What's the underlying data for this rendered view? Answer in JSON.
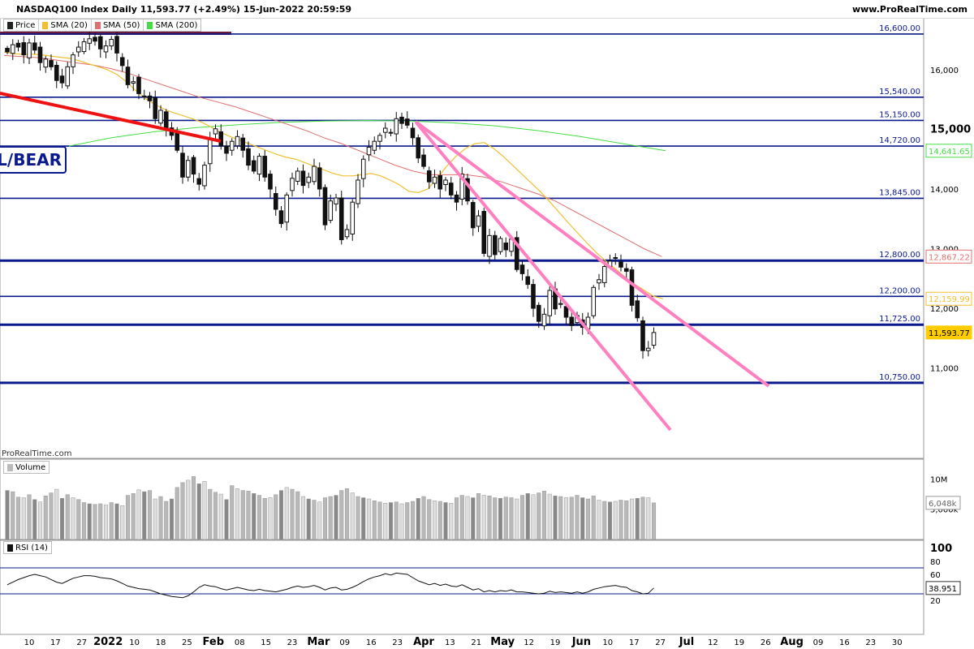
{
  "header": {
    "title": "NASDAQ100 Index Daily 11,593.77 (+2.49%) 15-Jun-2022 20:59:59",
    "site": "www.ProRealTime.com"
  },
  "legend_price": [
    "Price",
    "SMA (20)",
    "SMA (50)",
    "SMA (200)"
  ],
  "legend_volume": "Volume",
  "legend_rsi": "RSI (14)",
  "watermark": "ProRealTime.com",
  "annotation": "L/BEAR",
  "colors": {
    "sma20": "#f0c030",
    "sma50": "#e07070",
    "sma200": "#44dd44",
    "hline": "#0a1a8c",
    "trend_red": "#ee1111",
    "trend_pink": "#ff80c0",
    "price_tag": "#ffcc00",
    "volume_bar": "#bbbbbb"
  },
  "chart_data": [
    {
      "type": "candlestick",
      "name": "price",
      "ylim": [
        10650,
        16850
      ],
      "y_ticks": [
        "16,000",
        "15,000",
        "14,000",
        "13,000",
        "12,000",
        "11,000"
      ],
      "x_ticks": [
        "10",
        "17",
        "27",
        "2022",
        "10",
        "18",
        "25",
        "Feb",
        "08",
        "15",
        "23",
        "Mar",
        "09",
        "16",
        "23",
        "Apr",
        "13",
        "21",
        "May",
        "12",
        "19",
        "Jun",
        "10",
        "17",
        "27",
        "Jul",
        "12",
        "19",
        "26",
        "Aug",
        "09",
        "16",
        "23",
        "30"
      ],
      "levels": [
        16600,
        15540,
        15150,
        14720,
        13845,
        12800,
        12200,
        11725,
        10750
      ],
      "level_labels": [
        "16,600.00",
        "15,540.00",
        "15,150.00",
        "14,720.00",
        "13,845.00",
        "12,800.00",
        "12,200.00",
        "11,725.00",
        "10,750.00"
      ],
      "value_tags": [
        {
          "label": "14,641.65",
          "value": 14641.65,
          "color": "#44dd44"
        },
        {
          "label": "12,867.22",
          "value": 12867.22,
          "color": "#e07070"
        },
        {
          "label": "12,159.99",
          "value": 12159.99,
          "color": "#f0c030"
        },
        {
          "label": "11,593.77",
          "value": 11593.77,
          "color": "#ffcc00"
        }
      ],
      "closes": [
        16300,
        16420,
        16380,
        16250,
        16450,
        16330,
        16120,
        16180,
        16050,
        15820,
        15780,
        16050,
        16250,
        16380,
        16470,
        16520,
        16480,
        16350,
        16400,
        16510,
        16280,
        16070,
        15750,
        15800,
        15600,
        15560,
        15480,
        15180,
        15320,
        15000,
        14900,
        14650,
        14200,
        14480,
        14250,
        14080,
        14400,
        14850,
        15010,
        14720,
        14600,
        14800,
        14880,
        14650,
        14400,
        14300,
        14550,
        14200,
        14000,
        13660,
        13420,
        13900,
        14180,
        14300,
        14060,
        14200,
        14380,
        14000,
        13400,
        13800,
        13850,
        13150,
        13320,
        13780,
        14150,
        14500,
        14700,
        14800,
        14900,
        15020,
        14950,
        15180,
        15100,
        15070,
        14860,
        14520,
        14380,
        14120,
        14200,
        14000,
        14150,
        13900,
        13780,
        14250,
        13800,
        13350,
        13550,
        12920,
        13220,
        12900,
        13170,
        12980,
        13160,
        12650,
        12580,
        12400,
        12000,
        11780,
        11900,
        12300,
        11990,
        12080,
        11850,
        11710,
        11880,
        11680,
        11850,
        12350,
        12480,
        12700,
        12790,
        12850,
        12690,
        12620,
        12050,
        11840,
        11290,
        11330,
        11593.77
      ],
      "sma20": {
        "start": 0,
        "values": [
          16300,
          16270,
          16260,
          16260,
          16250,
          16230,
          16210,
          16190,
          16150,
          16100,
          16050,
          16000,
          15920,
          15800,
          15650,
          15520,
          15420,
          15340,
          15280,
          15230,
          15180,
          15120,
          15040,
          14950,
          14880,
          14820,
          14760,
          14700,
          14640,
          14580,
          14530,
          14500,
          14440,
          14380,
          14320,
          14260,
          14220,
          14220,
          14240,
          14260,
          14220,
          14150,
          14070,
          13960,
          13940,
          14000,
          14180,
          14380,
          14550,
          14680,
          14760,
          14780,
          14680,
          14550,
          14400,
          14250,
          14100,
          13950,
          13780,
          13600,
          13420,
          13250,
          13080,
          12920,
          12780,
          12650,
          12520,
          12400,
          12300,
          12200,
          12160
        ]
      }
    },
    {
      "type": "line",
      "name": "sma50",
      "values": [
        16240,
        16220,
        16200,
        16160,
        16120,
        16080,
        16020,
        15940,
        15840,
        15740,
        15640,
        15540,
        15460,
        15380,
        15280,
        15180,
        15080,
        14980,
        14860,
        14760,
        14640,
        14520,
        14400,
        14300,
        14240,
        14240,
        14240,
        14200,
        14120,
        14020,
        13920,
        13800,
        13640,
        13480,
        13320,
        13160,
        13000,
        12867.22
      ]
    },
    {
      "type": "line",
      "name": "sma200",
      "values": [
        14720,
        14860,
        14960,
        15030,
        15080,
        15120,
        15140,
        15150,
        15140,
        15110,
        15060,
        14980,
        14880,
        14760,
        14641.65
      ]
    },
    {
      "type": "bar",
      "name": "volume",
      "y_ticks": [
        "10M",
        "5,000k"
      ],
      "last_value_label": "6,048k",
      "ylim": [
        0,
        13000
      ],
      "values": [
        8100,
        7900,
        7000,
        6900,
        7400,
        6600,
        6200,
        7200,
        7700,
        8300,
        6800,
        7400,
        6900,
        6600,
        6100,
        5900,
        5800,
        5900,
        5700,
        6100,
        5900,
        5600,
        7300,
        7600,
        8200,
        7900,
        8100,
        6700,
        7100,
        6300,
        6700,
        8600,
        9400,
        9800,
        10400,
        9200,
        9600,
        8300,
        7800,
        7500,
        6600,
        8900,
        8400,
        8100,
        8000,
        7600,
        7300,
        6800,
        6900,
        7400,
        8100,
        8600,
        8300,
        7900,
        7100,
        6700,
        6500,
        6200,
        6900,
        7100,
        7300,
        8100,
        8400,
        7700,
        7100,
        6900,
        6700,
        6400,
        6200,
        6000,
        6100,
        6200,
        5900,
        6100,
        6300,
        6800,
        7100,
        6600,
        6400,
        6300,
        6100,
        6000,
        6900,
        7300,
        7100,
        6900,
        7600,
        7300,
        7200,
        6900,
        6800,
        7000,
        6900,
        6700,
        7300,
        7600,
        7400,
        7700,
        8000,
        7500,
        7200,
        7100,
        6900,
        7000,
        7300,
        6900,
        6700,
        7200,
        6500,
        6300,
        6200,
        6300,
        6500,
        6400,
        6700,
        6800,
        7000,
        6900,
        6048
      ]
    },
    {
      "type": "line",
      "name": "rsi14",
      "ylim": [
        0,
        100
      ],
      "y_ticks": [
        "100",
        "80",
        "60",
        "40",
        "20"
      ],
      "bands": [
        70,
        30
      ],
      "last_value_label": "38.951",
      "values": [
        44,
        48,
        52,
        55,
        58,
        60,
        58,
        56,
        52,
        48,
        46,
        50,
        54,
        56,
        58,
        58,
        57,
        55,
        54,
        53,
        50,
        46,
        42,
        40,
        38,
        37,
        36,
        33,
        30,
        28,
        26,
        25,
        24,
        27,
        33,
        40,
        44,
        42,
        41,
        38,
        36,
        38,
        40,
        38,
        36,
        35,
        37,
        35,
        34,
        33,
        35,
        37,
        40,
        42,
        40,
        41,
        43,
        40,
        36,
        39,
        40,
        36,
        37,
        40,
        44,
        49,
        53,
        56,
        58,
        61,
        59,
        62,
        61,
        60,
        55,
        50,
        47,
        44,
        46,
        43,
        45,
        42,
        41,
        44,
        40,
        36,
        38,
        33,
        35,
        33,
        35,
        34,
        36,
        33,
        33,
        32,
        31,
        30,
        31,
        34,
        32,
        33,
        32,
        31,
        33,
        31,
        33,
        37,
        39,
        41,
        42,
        43,
        41,
        40,
        35,
        33,
        30,
        31,
        38.951
      ]
    }
  ]
}
